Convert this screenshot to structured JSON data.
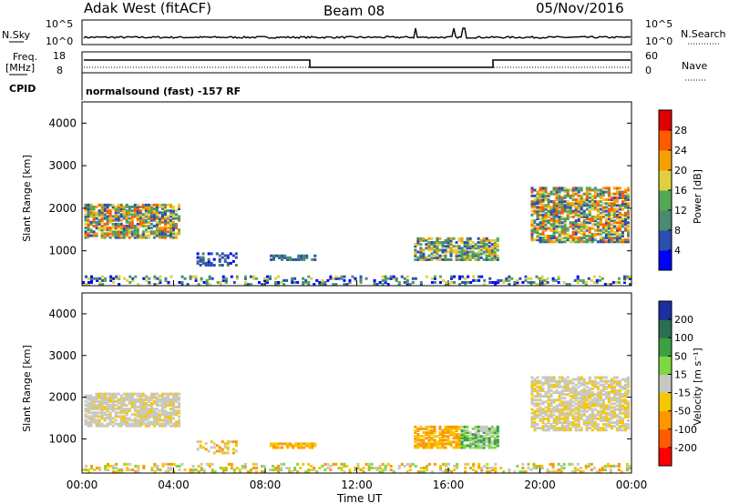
{
  "header": {
    "station": "Adak West (fitACF)",
    "beam": "Beam 08",
    "date": "05/Nov/2016"
  },
  "strips": {
    "nsky_label": "N.Sky",
    "nsky_top": "10^5",
    "nsky_bottom": "10^0",
    "nsearch_label": "N.Search",
    "freq_label_1": "Freq.",
    "freq_label_2": "[MHz]",
    "freq_top": "18",
    "freq_bottom": "8",
    "nave_top": "60",
    "nave_bottom": "0",
    "nave_label": "Nave",
    "cpid_label": "CPID",
    "cpid_text": "normalsound (fast) -157 RF"
  },
  "colors": {
    "power_scale": [
      "#0000ff",
      "#2b4fb0",
      "#4a8a70",
      "#54a854",
      "#e0d040",
      "#f5a000",
      "#ff5a00",
      "#e00000"
    ],
    "velocity_scale": [
      "#ff0000",
      "#ff5a00",
      "#ff9600",
      "#f5c800",
      "#c8c8c0",
      "#7ed840",
      "#3aa040",
      "#2a7050",
      "#1a2fa0"
    ]
  },
  "chart_data": [
    {
      "type": "heatmap",
      "name": "power",
      "ylabel": "Slant Range [km]",
      "yticks": [
        "1000",
        "2000",
        "3000",
        "4000"
      ],
      "ylim": [
        180,
        4500
      ],
      "xticks": [
        "00:00",
        "04:00",
        "08:00",
        "12:00",
        "16:00",
        "20:00",
        "00:00"
      ],
      "xlim": [
        0,
        24
      ],
      "colorbar_label": "Power [dB]",
      "colorbar_ticks": [
        "4",
        "8",
        "12",
        "16",
        "20",
        "24",
        "28"
      ],
      "colorbar_range": [
        0,
        32
      ]
    },
    {
      "type": "heatmap",
      "name": "velocity",
      "ylabel": "Slant Range [km]",
      "yticks": [
        "1000",
        "2000",
        "3000",
        "4000"
      ],
      "ylim": [
        180,
        4500
      ],
      "xticks": [
        "00:00",
        "04:00",
        "08:00",
        "12:00",
        "16:00",
        "20:00",
        "00:00"
      ],
      "xlim": [
        0,
        24
      ],
      "xlabel": "Time UT",
      "colorbar_label": "Velocity [m s⁻¹]",
      "colorbar_ticks": [
        "200",
        "100",
        "50",
        "15",
        "-15",
        "-50",
        "-100",
        "-200"
      ]
    }
  ]
}
